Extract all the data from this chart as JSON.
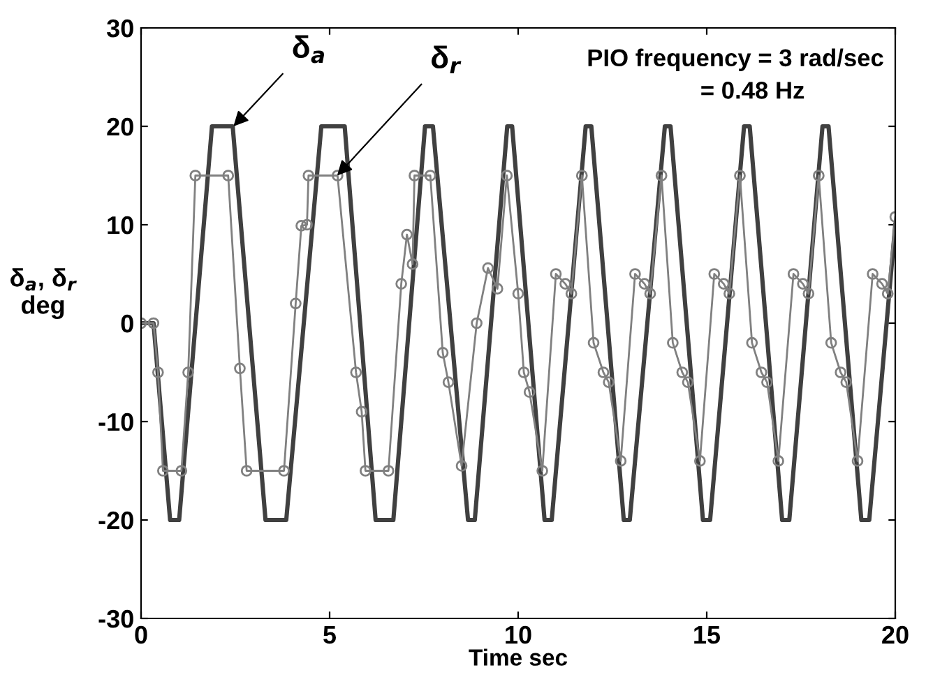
{
  "chart_data": {
    "type": "line",
    "xlabel": "Time sec",
    "ylabel": "δ$_{a}$, δ$_{r}$\ndeg",
    "xlim": [
      0,
      20
    ],
    "xticks": [
      0,
      5,
      10,
      15,
      20
    ],
    "ylim": [
      -30,
      30
    ],
    "yticks": [
      -30,
      -20,
      -10,
      0,
      10,
      20,
      30
    ],
    "grid": false,
    "legend": false,
    "series": [
      {
        "color": "#404040",
        "marker": "none",
        "line_style": "solid",
        "x": [
          0,
          0.33,
          0.77,
          1.01,
          1.88,
          2.43,
          3.3,
          3.85,
          4.78,
          5.4,
          6.22,
          6.69,
          7.53,
          7.74,
          8.67,
          8.85,
          9.71,
          9.84,
          10.7,
          10.89,
          11.79,
          11.94,
          12.8,
          12.96,
          13.89,
          14.04,
          14.9,
          15.09,
          15.99,
          16.14,
          17.0,
          17.19,
          18.07,
          18.23,
          19.1,
          19.31,
          20
        ],
        "values": [
          0,
          0,
          -20,
          -20,
          20,
          20,
          -20,
          -20,
          20,
          20,
          -20,
          -20,
          20,
          20,
          -20,
          -20,
          20,
          20,
          -20,
          -20,
          20,
          20,
          -20,
          -20,
          20,
          20,
          -20,
          -20,
          20,
          20,
          -20,
          -20,
          20,
          20,
          -20,
          -20,
          10
        ]
      },
      {
        "color": "#808080",
        "marker": "circle",
        "line_style": "solid",
        "x": [
          0,
          0.33,
          0.45,
          0.58,
          1.07,
          1.25,
          1.44,
          2.31,
          2.62,
          2.8,
          3.79,
          4.1,
          4.25,
          4.4,
          4.44,
          5.21,
          5.7,
          5.85,
          5.95,
          6.56,
          6.9,
          7.05,
          7.2,
          7.25,
          7.67,
          8.0,
          8.15,
          8.5,
          8.9,
          9.2,
          9.45,
          9.7,
          10.0,
          10.15,
          10.3,
          10.64,
          11.0,
          11.25,
          11.41,
          11.69,
          12.0,
          12.26,
          12.4,
          12.72,
          13.1,
          13.35,
          13.5,
          13.8,
          14.1,
          14.35,
          14.5,
          14.82,
          15.2,
          15.45,
          15.6,
          15.88,
          16.2,
          16.45,
          16.6,
          16.9,
          17.3,
          17.55,
          17.7,
          17.97,
          18.3,
          18.55,
          18.7,
          19.0,
          19.4,
          19.65,
          19.8,
          20
        ],
        "values": [
          0,
          0,
          -5,
          -15,
          -15,
          -5,
          15,
          15,
          -4.6,
          -15,
          -15,
          2,
          9.9,
          10,
          15,
          15,
          -5,
          -9,
          -15,
          -15,
          4,
          9,
          6,
          15,
          15,
          -3,
          -6,
          -14.5,
          0,
          5.6,
          3.5,
          15,
          3,
          -5,
          -7,
          -15,
          5,
          4,
          3,
          15,
          -2,
          -5,
          -6,
          -14,
          5,
          4,
          3,
          15,
          -2,
          -5,
          -6,
          -14,
          5,
          4,
          3,
          15,
          -2,
          -5,
          -6,
          -14,
          5,
          4,
          3,
          15,
          -2,
          -5,
          -6,
          -14,
          5,
          4,
          3,
          10.8
        ]
      }
    ],
    "annotations": [
      {
        "text": "δ$_{a}$",
        "x": 2.45,
        "y": 20
      },
      {
        "text": "δ$_{r}$",
        "x": 5.2,
        "y": 15
      },
      "PIO frequency = 3 rad/sec",
      "= 0.48 Hz"
    ]
  }
}
